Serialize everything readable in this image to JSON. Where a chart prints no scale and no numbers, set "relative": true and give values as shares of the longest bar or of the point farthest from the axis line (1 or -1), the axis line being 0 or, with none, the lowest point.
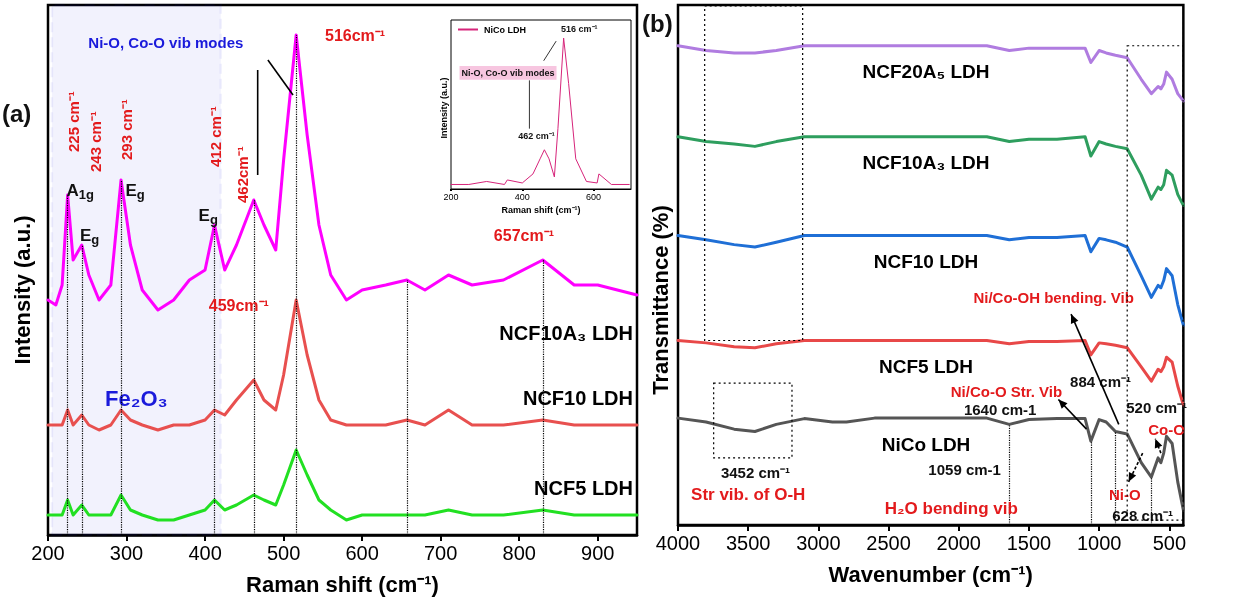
{
  "chart_data": [
    {
      "type": "line",
      "relative": true,
      "xlabel": "Raman shift (cm⁻¹)",
      "ylabel": "Intensity (a.u.)",
      "xlim": [
        200,
        950
      ],
      "xticks": [
        200,
        300,
        400,
        500,
        600,
        700,
        800,
        900
      ],
      "legend": false,
      "x": [
        200,
        210,
        218,
        225,
        232,
        243,
        252,
        265,
        280,
        293,
        305,
        320,
        340,
        360,
        380,
        400,
        412,
        425,
        440,
        462,
        475,
        490,
        500,
        516,
        530,
        545,
        560,
        580,
        600,
        630,
        657,
        680,
        710,
        740,
        780,
        830,
        870,
        900,
        950
      ],
      "series": [
        {
          "name": "NCF10A₃ LDH",
          "color": "#ff00ff",
          "values": [
            0.47,
            0.46,
            0.5,
            0.68,
            0.55,
            0.58,
            0.52,
            0.47,
            0.5,
            0.71,
            0.58,
            0.49,
            0.45,
            0.47,
            0.51,
            0.53,
            0.62,
            0.53,
            0.58,
            0.67,
            0.62,
            0.57,
            0.75,
            1.0,
            0.8,
            0.62,
            0.52,
            0.47,
            0.49,
            0.5,
            0.51,
            0.49,
            0.52,
            0.5,
            0.51,
            0.55,
            0.5,
            0.5,
            0.48
          ]
        },
        {
          "name": "NCF10 LDH",
          "color": "#e8504f",
          "values": [
            0.22,
            0.22,
            0.22,
            0.25,
            0.22,
            0.24,
            0.22,
            0.21,
            0.22,
            0.25,
            0.23,
            0.22,
            0.21,
            0.22,
            0.22,
            0.23,
            0.25,
            0.24,
            0.27,
            0.31,
            0.27,
            0.25,
            0.32,
            0.47,
            0.36,
            0.27,
            0.23,
            0.22,
            0.22,
            0.22,
            0.23,
            0.22,
            0.25,
            0.22,
            0.22,
            0.23,
            0.22,
            0.22,
            0.22
          ]
        },
        {
          "name": "NCF5 LDH",
          "color": "#22e022",
          "values": [
            0.04,
            0.04,
            0.04,
            0.07,
            0.04,
            0.06,
            0.04,
            0.04,
            0.04,
            0.08,
            0.05,
            0.04,
            0.03,
            0.03,
            0.04,
            0.05,
            0.07,
            0.05,
            0.06,
            0.08,
            0.07,
            0.06,
            0.1,
            0.17,
            0.12,
            0.07,
            0.05,
            0.03,
            0.04,
            0.04,
            0.04,
            0.04,
            0.05,
            0.04,
            0.04,
            0.05,
            0.04,
            0.04,
            0.04
          ]
        }
      ],
      "ref_lines": [
        {
          "axis": "x",
          "value": 225,
          "line_style": "dotted",
          "color": "#000000"
        },
        {
          "axis": "x",
          "value": 243,
          "line_style": "dotted",
          "color": "#000000"
        },
        {
          "axis": "x",
          "value": 293,
          "line_style": "dotted",
          "color": "#000000"
        },
        {
          "axis": "x",
          "value": 412,
          "line_style": "dotted",
          "color": "#000000"
        },
        {
          "axis": "x",
          "value": 462,
          "line_style": "dotted",
          "color": "#000000"
        },
        {
          "axis": "x",
          "value": 516,
          "line_style": "dotted",
          "color": "#000000"
        },
        {
          "axis": "x",
          "value": 657,
          "line_style": "dotted",
          "color": "#000000"
        },
        {
          "axis": "x",
          "value": 830,
          "line_style": "dotted",
          "color": "#000000"
        }
      ],
      "bands": [
        {
          "axis": "x",
          "from": 205,
          "to": 420,
          "label": "Fe₂O₃",
          "color": "#1a1adb"
        }
      ],
      "annotations": [
        "(a)",
        "Ni-O, Co-O vib modes",
        "516cm⁻¹",
        "225 cm⁻¹",
        "243 cm⁻¹",
        "293 cm⁻¹",
        "412 cm⁻¹",
        "462cm⁻¹",
        "A$_{1g}$",
        "E$_{g}$",
        "E$_{g}$",
        "E$_{g}$",
        "657cm⁻¹",
        "459cm⁻¹"
      ]
    },
    {
      "type": "line",
      "relative": true,
      "xlabel": "Raman shift (cm⁻¹)",
      "ylabel": "Intensity (a.u.)",
      "xlim": [
        200,
        705
      ],
      "xticks": [
        200,
        400,
        600
      ],
      "legend": "top left",
      "x": [
        200,
        250,
        300,
        350,
        358,
        400,
        430,
        450,
        462,
        475,
        490,
        500,
        516,
        530,
        550,
        580,
        610,
        615,
        650,
        700
      ],
      "series": [
        {
          "name": "NiCo LDH",
          "color": "#d6247a",
          "values": [
            0.03,
            0.03,
            0.05,
            0.03,
            0.06,
            0.04,
            0.1,
            0.2,
            0.26,
            0.2,
            0.08,
            0.4,
            1.0,
            0.7,
            0.2,
            0.05,
            0.04,
            0.1,
            0.03,
            0.03
          ]
        }
      ],
      "annotations": [
        "516 cm⁻¹",
        "Ni-O, Co-O vib modes",
        "462 cm⁻¹"
      ]
    },
    {
      "type": "line",
      "relative": true,
      "xlabel": "Wavenumber (cm⁻¹)",
      "ylabel": "Transmittance (%)",
      "xlim": [
        4000,
        400
      ],
      "xticks": [
        4000,
        3500,
        3000,
        2500,
        2000,
        1500,
        1000,
        500
      ],
      "legend": false,
      "x": [
        4000,
        3800,
        3600,
        3452,
        3300,
        3100,
        2900,
        2800,
        2600,
        2400,
        2200,
        2000,
        1800,
        1640,
        1500,
        1300,
        1100,
        1059,
        1000,
        950,
        884,
        800,
        700,
        628,
        580,
        560,
        540,
        520,
        480,
        440,
        400
      ],
      "series": [
        {
          "name": "NCF20A₅ LDH",
          "color": "#b07ce0",
          "values": [
            1.0,
            0.99,
            0.985,
            0.985,
            0.99,
            1.0,
            1.0,
            1.0,
            1.0,
            1.0,
            1.0,
            1.0,
            1.0,
            0.99,
            0.995,
            0.995,
            0.995,
            0.965,
            0.99,
            0.985,
            0.98,
            0.975,
            0.93,
            0.9,
            0.915,
            0.91,
            0.92,
            0.945,
            0.93,
            0.9,
            0.885
          ]
        },
        {
          "name": "NCF10A₃ LDH",
          "color": "#2e9e5e",
          "values": [
            0.81,
            0.8,
            0.795,
            0.79,
            0.8,
            0.81,
            0.81,
            0.81,
            0.81,
            0.81,
            0.81,
            0.81,
            0.81,
            0.8,
            0.805,
            0.805,
            0.81,
            0.77,
            0.8,
            0.795,
            0.79,
            0.785,
            0.73,
            0.68,
            0.705,
            0.7,
            0.71,
            0.74,
            0.73,
            0.69,
            0.667
          ]
        },
        {
          "name": "NCF10 LDH",
          "color": "#1f6fd6",
          "values": [
            0.604,
            0.595,
            0.585,
            0.58,
            0.59,
            0.604,
            0.604,
            0.604,
            0.604,
            0.604,
            0.604,
            0.604,
            0.604,
            0.595,
            0.6,
            0.6,
            0.604,
            0.57,
            0.598,
            0.595,
            0.59,
            0.58,
            0.52,
            0.475,
            0.5,
            0.495,
            0.51,
            0.535,
            0.52,
            0.46,
            0.417
          ]
        },
        {
          "name": "NCF5 LDH",
          "color": "#e84848",
          "values": [
            0.385,
            0.38,
            0.372,
            0.37,
            0.378,
            0.385,
            0.385,
            0.385,
            0.385,
            0.385,
            0.385,
            0.385,
            0.385,
            0.378,
            0.383,
            0.383,
            0.385,
            0.355,
            0.38,
            0.378,
            0.375,
            0.37,
            0.33,
            0.3,
            0.325,
            0.32,
            0.33,
            0.35,
            0.34,
            0.29,
            0.25
          ]
        },
        {
          "name": "NiCo LDH",
          "color": "#555555",
          "values": [
            0.223,
            0.215,
            0.2,
            0.195,
            0.21,
            0.222,
            0.215,
            0.215,
            0.223,
            0.223,
            0.223,
            0.223,
            0.223,
            0.21,
            0.22,
            0.222,
            0.222,
            0.175,
            0.22,
            0.215,
            0.195,
            0.19,
            0.13,
            0.1,
            0.14,
            0.13,
            0.15,
            0.185,
            0.17,
            0.09,
            0.031
          ]
        }
      ],
      "ref_lines": [
        {
          "axis": "x",
          "value": 1640,
          "line_style": "dotted",
          "color": "#000000"
        },
        {
          "axis": "x",
          "value": 1059,
          "line_style": "dotted",
          "color": "#000000"
        },
        {
          "axis": "x",
          "value": 884,
          "line_style": "dotted",
          "color": "#000000"
        },
        {
          "axis": "x",
          "value": 628,
          "line_style": "dotted",
          "color": "#000000"
        }
      ],
      "annotations": [
        "(b)",
        "Ni/Co-OH bending. Vib",
        "Ni/Co-O Str. Vib",
        "884 cm⁻¹",
        "520 cm⁻¹",
        "Co-O",
        "1640 cm-1",
        "1059 cm-1",
        "3452 cm⁻¹",
        "Str vib. of O-H",
        "H₂O bending vib",
        "Ni-O",
        "628 cm⁻¹"
      ]
    }
  ]
}
